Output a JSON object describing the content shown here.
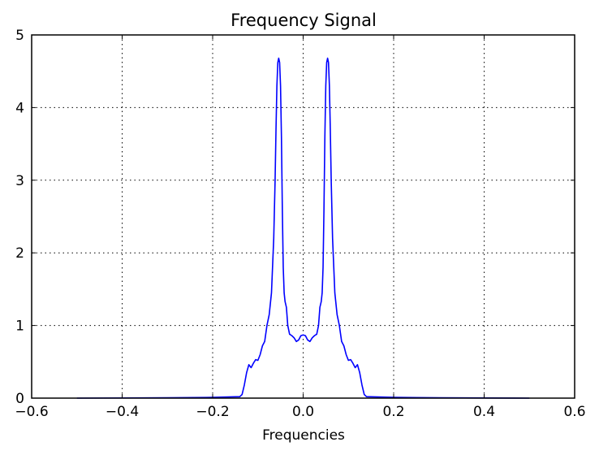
{
  "chart_data": {
    "type": "line",
    "title": "Frequency Signal",
    "xlabel": "Frequencies",
    "ylabel": "",
    "xlim": [
      -0.6,
      0.6
    ],
    "ylim": [
      0,
      5
    ],
    "xticks": [
      -0.6,
      -0.4,
      -0.2,
      0.0,
      0.2,
      0.4,
      0.6
    ],
    "xtick_labels": [
      "−0.6",
      "−0.4",
      "−0.2",
      "0.0",
      "0.2",
      "0.4",
      "0.6"
    ],
    "yticks": [
      0,
      1,
      2,
      3,
      4,
      5
    ],
    "ytick_labels": [
      "0",
      "1",
      "2",
      "3",
      "4",
      "5"
    ],
    "grid": true,
    "line_color": "#0000ff",
    "series": [
      {
        "x": [
          -0.5,
          -0.3,
          -0.2,
          -0.14,
          -0.135,
          -0.13,
          -0.125,
          -0.12,
          -0.115,
          -0.11,
          -0.105,
          -0.1,
          -0.095,
          -0.09,
          -0.085,
          -0.08,
          -0.075,
          -0.07,
          -0.065,
          -0.062,
          -0.06,
          -0.058,
          -0.056,
          -0.054,
          -0.052,
          -0.05,
          -0.048,
          -0.046,
          -0.044,
          -0.042,
          -0.04,
          -0.037,
          -0.034,
          -0.03,
          -0.025,
          -0.02,
          -0.015,
          -0.01,
          -0.005,
          0.0,
          0.005,
          0.01,
          0.015,
          0.02,
          0.025,
          0.03,
          0.034,
          0.037,
          0.04,
          0.042,
          0.044,
          0.046,
          0.048,
          0.05,
          0.052,
          0.054,
          0.056,
          0.058,
          0.06,
          0.062,
          0.065,
          0.07,
          0.075,
          0.08,
          0.085,
          0.09,
          0.095,
          0.1,
          0.105,
          0.11,
          0.115,
          0.12,
          0.125,
          0.13,
          0.135,
          0.14,
          0.2,
          0.3,
          0.5
        ],
        "y": [
          0.0,
          0.005,
          0.01,
          0.02,
          0.05,
          0.18,
          0.35,
          0.46,
          0.42,
          0.48,
          0.53,
          0.52,
          0.6,
          0.72,
          0.78,
          1.0,
          1.15,
          1.45,
          2.2,
          3.0,
          3.7,
          4.3,
          4.62,
          4.68,
          4.62,
          4.3,
          3.6,
          2.6,
          1.8,
          1.45,
          1.33,
          1.25,
          1.0,
          0.88,
          0.86,
          0.83,
          0.78,
          0.8,
          0.86,
          0.87,
          0.86,
          0.8,
          0.78,
          0.83,
          0.86,
          0.88,
          1.0,
          1.25,
          1.33,
          1.45,
          1.8,
          2.6,
          3.6,
          4.3,
          4.62,
          4.68,
          4.62,
          4.3,
          3.7,
          3.0,
          2.2,
          1.45,
          1.15,
          1.0,
          0.78,
          0.72,
          0.6,
          0.52,
          0.53,
          0.48,
          0.42,
          0.46,
          0.35,
          0.18,
          0.05,
          0.02,
          0.01,
          0.005,
          0.0
        ]
      }
    ]
  }
}
